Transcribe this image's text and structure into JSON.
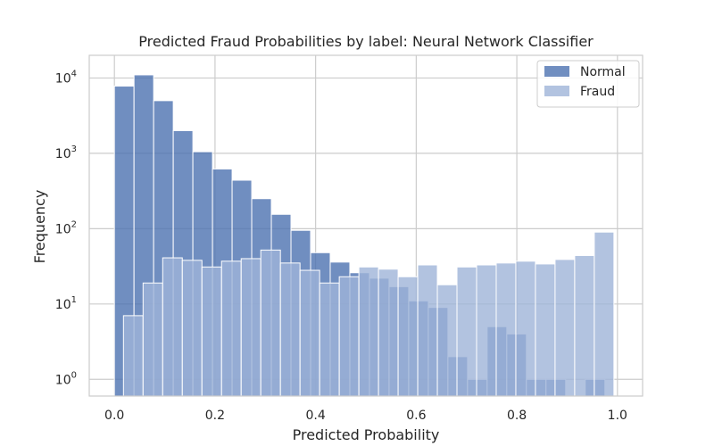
{
  "chart_data": {
    "type": "bar",
    "title": "Predicted Fraud Probabilities by label: Neural Network Classifier",
    "xlabel": "Predicted Probability",
    "ylabel": "Frequency",
    "xlim": [
      -0.05,
      1.05
    ],
    "ylim": [
      0.6,
      20000
    ],
    "yscale": "log",
    "xticks": [
      "0.0",
      "0.2",
      "0.4",
      "0.6",
      "0.8",
      "1.0"
    ],
    "xtick_values": [
      0.0,
      0.2,
      0.4,
      0.6,
      0.8,
      1.0
    ],
    "yticks": [
      {
        "base": "10",
        "exp": "0",
        "value": 1
      },
      {
        "base": "10",
        "exp": "1",
        "value": 10
      },
      {
        "base": "10",
        "exp": "2",
        "value": 100
      },
      {
        "base": "10",
        "exp": "3",
        "value": 1000
      },
      {
        "base": "10",
        "exp": "4",
        "value": 10000
      }
    ],
    "grid": true,
    "legend_placement": "top-right",
    "series": [
      {
        "name": "Normal",
        "color": "#4c72b0",
        "opacity": 0.8,
        "bins": [
          [
            0.0,
            0.039,
            7800
          ],
          [
            0.039,
            0.078,
            11000
          ],
          [
            0.078,
            0.117,
            5000
          ],
          [
            0.117,
            0.156,
            2000
          ],
          [
            0.156,
            0.195,
            1050
          ],
          [
            0.195,
            0.234,
            620
          ],
          [
            0.234,
            0.273,
            440
          ],
          [
            0.273,
            0.312,
            250
          ],
          [
            0.312,
            0.351,
            155
          ],
          [
            0.351,
            0.39,
            95
          ],
          [
            0.39,
            0.429,
            48
          ],
          [
            0.429,
            0.468,
            36
          ],
          [
            0.468,
            0.507,
            26
          ],
          [
            0.507,
            0.546,
            22
          ],
          [
            0.546,
            0.585,
            17
          ],
          [
            0.585,
            0.624,
            11
          ],
          [
            0.624,
            0.663,
            9
          ],
          [
            0.663,
            0.702,
            2
          ],
          [
            0.702,
            0.741,
            1
          ],
          [
            0.741,
            0.78,
            5
          ],
          [
            0.78,
            0.819,
            4
          ],
          [
            0.819,
            0.858,
            1
          ],
          [
            0.858,
            0.897,
            1
          ],
          [
            0.936,
            0.975,
            1
          ]
        ]
      },
      {
        "name": "Fraud",
        "color": "#9fb4d8",
        "opacity": 0.8,
        "bins": [
          [
            0.018,
            0.057,
            7
          ],
          [
            0.057,
            0.096,
            19
          ],
          [
            0.096,
            0.135,
            41
          ],
          [
            0.135,
            0.174,
            38
          ],
          [
            0.174,
            0.213,
            31
          ],
          [
            0.213,
            0.252,
            37
          ],
          [
            0.252,
            0.291,
            40
          ],
          [
            0.291,
            0.33,
            52
          ],
          [
            0.33,
            0.369,
            35
          ],
          [
            0.369,
            0.408,
            28
          ],
          [
            0.408,
            0.447,
            19
          ],
          [
            0.447,
            0.486,
            23
          ],
          [
            0.486,
            0.525,
            31
          ],
          [
            0.525,
            0.564,
            29
          ],
          [
            0.564,
            0.603,
            23
          ],
          [
            0.603,
            0.642,
            33
          ],
          [
            0.642,
            0.681,
            18
          ],
          [
            0.681,
            0.72,
            31
          ],
          [
            0.72,
            0.759,
            33
          ],
          [
            0.759,
            0.798,
            35
          ],
          [
            0.798,
            0.837,
            37
          ],
          [
            0.837,
            0.876,
            34
          ],
          [
            0.876,
            0.915,
            39
          ],
          [
            0.915,
            0.954,
            44
          ],
          [
            0.954,
            0.993,
            90
          ]
        ]
      }
    ]
  }
}
